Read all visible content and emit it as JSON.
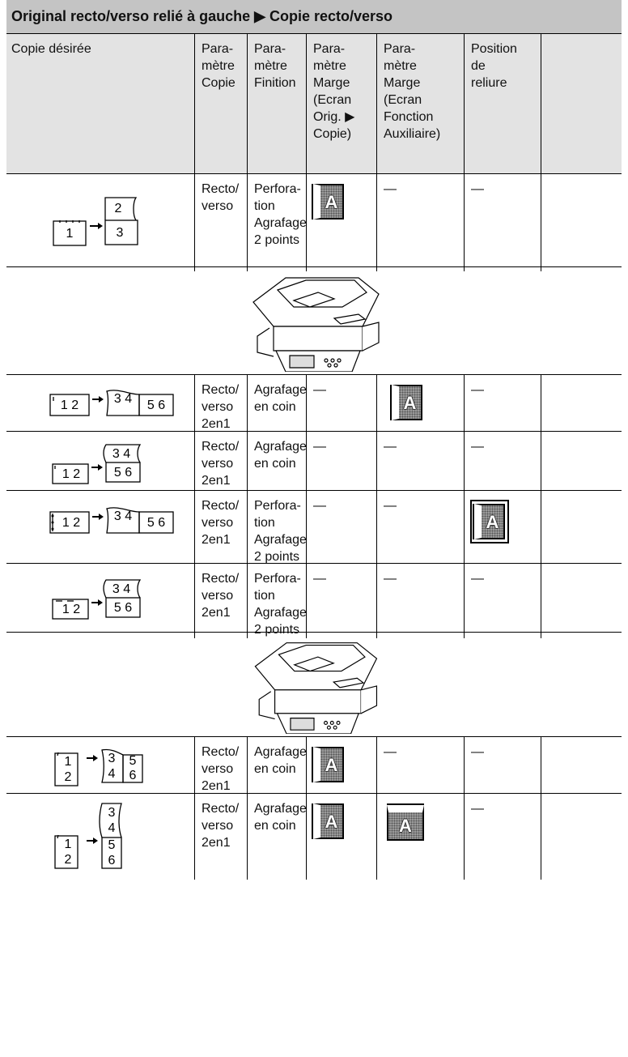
{
  "table": {
    "title": "Original recto/verso relié à gauche ▶ Copie recto/verso",
    "header": [
      "Copie désirée",
      "Para-\nmètre\nCopie",
      "Para-\nmètre\nFinition",
      "Para-\nmètre\nMarge\n(Ecran\nOrig. ▶\nCopie)",
      "Para-\nmètre\nMarge\n(Ecran\nFonction\nAuxiliaire)",
      "Position\nde\nreliure"
    ],
    "rows": [
      {
        "diagram": [
          "1",
          "2",
          "3"
        ],
        "cells": [
          "Recto/\nverso",
          "Perfora-\ntion\nAgrafage\n2 points",
          "A",
          "—",
          "—"
        ]
      },
      {
        "diagram": [
          "1 2",
          "3 4",
          "5 6"
        ],
        "cells": [
          "Recto/\nverso\n2en1",
          "Agrafage\nen coin",
          "—",
          "A",
          "—"
        ]
      },
      {
        "diagram": [
          "1 2",
          "3 4",
          "5 6"
        ],
        "cells": [
          "Recto/\nverso\n2en1",
          "Agrafage\nen coin",
          "—",
          "—",
          "—"
        ]
      },
      {
        "diagram": [
          "1 2",
          "3 4",
          "5 6"
        ],
        "cells": [
          "Recto/\nverso\n2en1",
          "Perfora-\ntion\nAgrafage\n2 points",
          "—",
          "—",
          "A"
        ]
      },
      {
        "diagram": [
          "1 2",
          "3 4",
          "5 6"
        ],
        "cells": [
          "Recto/\nverso\n2en1",
          "Perfora-\ntion\nAgrafage\n2 points",
          "—",
          "—",
          "—"
        ]
      },
      {
        "diagram": [
          "1",
          "2",
          "3",
          "4",
          "5",
          "6"
        ],
        "cells": [
          "Recto/\nverso\n2en1",
          "Agrafage\nen coin",
          "A",
          "—",
          "—"
        ]
      },
      {
        "diagram": [
          "1",
          "2",
          "3",
          "4",
          "5",
          "6"
        ],
        "cells": [
          "Recto/\nverso\n2en1",
          "Agrafage\nen coin",
          "A",
          "A",
          "—"
        ]
      }
    ]
  }
}
